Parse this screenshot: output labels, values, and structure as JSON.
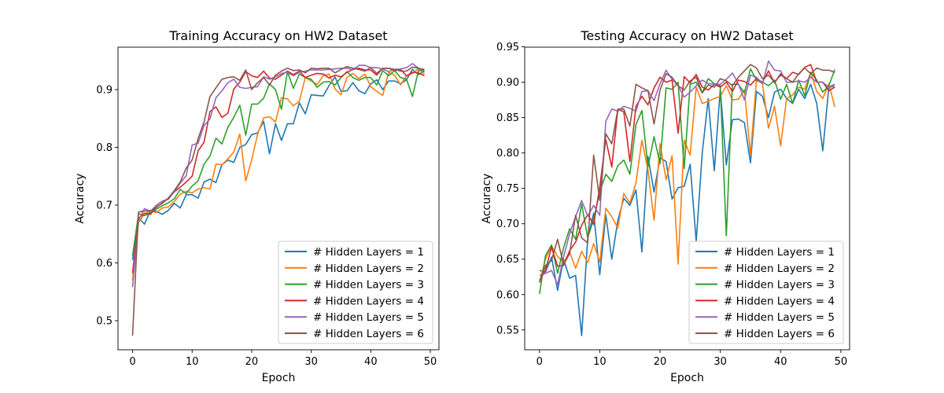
{
  "chart_data": [
    {
      "type": "line",
      "title": "Training Accuracy on HW2 Dataset",
      "xlabel": "Epoch",
      "ylabel": "Accuracy",
      "xlim": [
        -2.45,
        51.45
      ],
      "ylim": [
        0.4495,
        0.9735
      ],
      "xticks": [
        0,
        10,
        20,
        30,
        40,
        50
      ],
      "xtick_labels": [
        "0",
        "10",
        "20",
        "30",
        "40",
        "50"
      ],
      "yticks": [
        0.5,
        0.6,
        0.7,
        0.8,
        0.9
      ],
      "ytick_labels": [
        "0.5",
        "0.6",
        "0.7",
        "0.8",
        "0.9"
      ],
      "grid": false,
      "legend_position": "lower-right",
      "x": [
        0,
        1,
        2,
        3,
        4,
        5,
        6,
        7,
        8,
        9,
        10,
        11,
        12,
        13,
        14,
        15,
        16,
        17,
        18,
        19,
        20,
        21,
        22,
        23,
        24,
        25,
        26,
        27,
        28,
        29,
        30,
        31,
        32,
        33,
        34,
        35,
        36,
        37,
        38,
        39,
        40,
        41,
        42,
        43,
        44,
        45,
        46,
        47,
        48,
        49
      ],
      "series": [
        {
          "name": "# Hidden Layers = 1",
          "color": "#1f77b4",
          "values": [
            0.605,
            0.678,
            0.667,
            0.691,
            0.689,
            0.684,
            0.691,
            0.703,
            0.695,
            0.718,
            0.718,
            0.712,
            0.74,
            0.745,
            0.739,
            0.77,
            0.778,
            0.774,
            0.8,
            0.805,
            0.822,
            0.825,
            0.845,
            0.789,
            0.841,
            0.812,
            0.841,
            0.841,
            0.877,
            0.858,
            0.891,
            0.89,
            0.889,
            0.907,
            0.922,
            0.897,
            0.898,
            0.912,
            0.898,
            0.893,
            0.91,
            0.917,
            0.9,
            0.915,
            0.915,
            0.91,
            0.917,
            0.935,
            0.926,
            0.932
          ]
        },
        {
          "name": "# Hidden Layers = 2",
          "color": "#ff7f0e",
          "values": [
            0.57,
            0.67,
            0.685,
            0.69,
            0.687,
            0.695,
            0.697,
            0.706,
            0.719,
            0.724,
            0.721,
            0.728,
            0.73,
            0.728,
            0.771,
            0.77,
            0.78,
            0.792,
            0.823,
            0.742,
            0.778,
            0.823,
            0.851,
            0.853,
            0.844,
            0.886,
            0.884,
            0.872,
            0.88,
            0.921,
            0.915,
            0.909,
            0.924,
            0.927,
            0.901,
            0.891,
            0.921,
            0.928,
            0.919,
            0.927,
            0.905,
            0.897,
            0.89,
            0.93,
            0.925,
            0.908,
            0.924,
            0.928,
            0.936,
            0.927
          ]
        },
        {
          "name": "# Hidden Layers = 3",
          "color": "#2ca02c",
          "values": [
            0.612,
            0.685,
            0.682,
            0.686,
            0.693,
            0.699,
            0.704,
            0.711,
            0.727,
            0.72,
            0.733,
            0.742,
            0.771,
            0.785,
            0.816,
            0.806,
            0.835,
            0.852,
            0.873,
            0.821,
            0.875,
            0.875,
            0.885,
            0.91,
            0.9,
            0.866,
            0.931,
            0.902,
            0.927,
            0.921,
            0.918,
            0.904,
            0.913,
            0.914,
            0.908,
            0.921,
            0.931,
            0.921,
            0.916,
            0.921,
            0.921,
            0.908,
            0.933,
            0.924,
            0.933,
            0.921,
            0.918,
            0.888,
            0.933,
            0.933
          ]
        },
        {
          "name": "# Hidden Layers = 4",
          "color": "#d62728",
          "values": [
            0.582,
            0.677,
            0.686,
            0.684,
            0.697,
            0.703,
            0.712,
            0.723,
            0.731,
            0.74,
            0.75,
            0.794,
            0.809,
            0.862,
            0.87,
            0.852,
            0.859,
            0.901,
            0.913,
            0.931,
            0.924,
            0.921,
            0.932,
            0.92,
            0.918,
            0.925,
            0.932,
            0.926,
            0.932,
            0.921,
            0.925,
            0.928,
            0.927,
            0.92,
            0.925,
            0.922,
            0.93,
            0.935,
            0.937,
            0.934,
            0.934,
            0.925,
            0.937,
            0.937,
            0.933,
            0.935,
            0.924,
            0.93,
            0.929,
            0.924
          ]
        },
        {
          "name": "# Hidden Layers = 5",
          "color": "#9467bd",
          "values": [
            0.558,
            0.674,
            0.694,
            0.689,
            0.7,
            0.707,
            0.71,
            0.723,
            0.738,
            0.751,
            0.804,
            0.807,
            0.838,
            0.849,
            0.886,
            0.898,
            0.912,
            0.918,
            0.904,
            0.902,
            0.904,
            0.905,
            0.922,
            0.918,
            0.922,
            0.928,
            0.93,
            0.924,
            0.93,
            0.932,
            0.934,
            0.934,
            0.934,
            0.935,
            0.936,
            0.937,
            0.937,
            0.934,
            0.942,
            0.942,
            0.938,
            0.938,
            0.936,
            0.931,
            0.935,
            0.936,
            0.938,
            0.945,
            0.937,
            0.935
          ]
        },
        {
          "name": "# Hidden Layers = 6",
          "color": "#8c564b",
          "values": [
            0.474,
            0.688,
            0.69,
            0.69,
            0.696,
            0.704,
            0.712,
            0.725,
            0.74,
            0.764,
            0.778,
            0.815,
            0.844,
            0.888,
            0.903,
            0.918,
            0.921,
            0.922,
            0.916,
            0.934,
            0.9,
            0.912,
            0.921,
            0.908,
            0.925,
            0.932,
            0.937,
            0.933,
            0.934,
            0.929,
            0.937,
            0.936,
            0.937,
            0.937,
            0.929,
            0.935,
            0.94,
            0.937,
            0.935,
            0.932,
            0.938,
            0.928,
            0.937,
            0.937,
            0.935,
            0.932,
            0.932,
            0.939,
            0.937,
            0.934
          ]
        }
      ]
    },
    {
      "type": "line",
      "title": "Testing Accuracy on HW2 Dataset",
      "xlabel": "Epoch",
      "ylabel": "Accuracy",
      "xlim": [
        -2.45,
        51.45
      ],
      "ylim": [
        0.522,
        0.9495
      ],
      "xticks": [
        0,
        10,
        20,
        30,
        40,
        50
      ],
      "xtick_labels": [
        "0",
        "10",
        "20",
        "30",
        "40",
        "50"
      ],
      "yticks": [
        0.55,
        0.6,
        0.65,
        0.7,
        0.75,
        0.8,
        0.85,
        0.9,
        0.95
      ],
      "ytick_labels": [
        "0.55",
        "0.60",
        "0.65",
        "0.70",
        "0.75",
        "0.80",
        "0.85",
        "0.90",
        "0.95"
      ],
      "grid": false,
      "legend_position": "lower-right",
      "x": [
        0,
        1,
        2,
        3,
        4,
        5,
        6,
        7,
        8,
        9,
        10,
        11,
        12,
        13,
        14,
        15,
        16,
        17,
        18,
        19,
        20,
        21,
        22,
        23,
        24,
        25,
        26,
        27,
        28,
        29,
        30,
        31,
        32,
        33,
        34,
        35,
        36,
        37,
        38,
        39,
        40,
        41,
        42,
        43,
        44,
        45,
        46,
        47,
        48,
        49
      ],
      "series": [
        {
          "name": "# Hidden Layers = 1",
          "color": "#1f77b4",
          "values": [
            0.634,
            0.632,
            0.653,
            0.606,
            0.65,
            0.623,
            0.627,
            0.542,
            0.68,
            0.715,
            0.628,
            0.713,
            0.65,
            0.705,
            0.736,
            0.726,
            0.748,
            0.66,
            0.795,
            0.745,
            0.793,
            0.788,
            0.735,
            0.751,
            0.753,
            0.784,
            0.675,
            0.8,
            0.877,
            0.775,
            0.89,
            0.783,
            0.847,
            0.848,
            0.843,
            0.786,
            0.887,
            0.88,
            0.85,
            0.886,
            0.89,
            0.877,
            0.87,
            0.89,
            0.877,
            0.897,
            0.87,
            0.803,
            0.893,
            0.897
          ]
        },
        {
          "name": "# Hidden Layers = 2",
          "color": "#ff7f0e",
          "values": [
            0.617,
            0.65,
            0.669,
            0.654,
            0.645,
            0.66,
            0.637,
            0.661,
            0.645,
            0.672,
            0.646,
            0.722,
            0.71,
            0.694,
            0.743,
            0.729,
            0.758,
            0.818,
            0.776,
            0.705,
            0.813,
            0.762,
            0.796,
            0.643,
            0.818,
            0.797,
            0.893,
            0.87,
            0.873,
            0.877,
            0.88,
            0.895,
            0.875,
            0.876,
            0.889,
            0.797,
            0.903,
            0.898,
            0.835,
            0.866,
            0.81,
            0.877,
            0.882,
            0.893,
            0.89,
            0.914,
            0.887,
            0.877,
            0.898,
            0.865
          ]
        },
        {
          "name": "# Hidden Layers = 3",
          "color": "#2ca02c",
          "values": [
            0.601,
            0.655,
            0.67,
            0.63,
            0.666,
            0.693,
            0.678,
            0.728,
            0.68,
            0.707,
            0.745,
            0.77,
            0.76,
            0.782,
            0.79,
            0.77,
            0.84,
            0.86,
            0.78,
            0.823,
            0.785,
            0.892,
            0.89,
            0.9,
            0.778,
            0.897,
            0.9,
            0.885,
            0.905,
            0.898,
            0.895,
            0.683,
            0.897,
            0.897,
            0.885,
            0.919,
            0.903,
            0.9,
            0.895,
            0.903,
            0.876,
            0.897,
            0.87,
            0.903,
            0.881,
            0.914,
            0.903,
            0.886,
            0.895,
            0.918
          ]
        },
        {
          "name": "# Hidden Layers = 4",
          "color": "#d62728",
          "values": [
            0.62,
            0.634,
            0.667,
            0.64,
            0.641,
            0.662,
            0.674,
            0.698,
            0.713,
            0.699,
            0.752,
            0.819,
            0.78,
            0.862,
            0.858,
            0.788,
            0.866,
            0.88,
            0.868,
            0.892,
            0.907,
            0.9,
            0.903,
            0.828,
            0.908,
            0.899,
            0.911,
            0.893,
            0.889,
            0.897,
            0.893,
            0.9,
            0.887,
            0.903,
            0.901,
            0.896,
            0.905,
            0.9,
            0.916,
            0.899,
            0.912,
            0.905,
            0.914,
            0.911,
            0.921,
            0.925,
            0.9,
            0.9,
            0.888,
            0.893
          ]
        },
        {
          "name": "# Hidden Layers = 5",
          "color": "#9467bd",
          "values": [
            0.627,
            0.63,
            0.634,
            0.614,
            0.653,
            0.686,
            0.71,
            0.733,
            0.711,
            0.726,
            0.712,
            0.845,
            0.862,
            0.859,
            0.866,
            0.863,
            0.859,
            0.887,
            0.888,
            0.874,
            0.898,
            0.917,
            0.904,
            0.895,
            0.879,
            0.886,
            0.895,
            0.903,
            0.898,
            0.897,
            0.897,
            0.904,
            0.913,
            0.898,
            0.875,
            0.91,
            0.907,
            0.898,
            0.93,
            0.917,
            0.916,
            0.9,
            0.9,
            0.902,
            0.9,
            0.907,
            0.9,
            0.9,
            0.893,
            0.894
          ]
        },
        {
          "name": "# Hidden Layers = 6",
          "color": "#8c564b",
          "values": [
            0.617,
            0.641,
            0.648,
            0.678,
            0.642,
            0.658,
            0.712,
            0.68,
            0.673,
            0.797,
            0.733,
            0.827,
            0.813,
            0.862,
            0.862,
            0.838,
            0.897,
            0.892,
            0.888,
            0.841,
            0.889,
            0.912,
            0.907,
            0.895,
            0.889,
            0.902,
            0.907,
            0.885,
            0.896,
            0.893,
            0.905,
            0.902,
            0.895,
            0.907,
            0.916,
            0.925,
            0.92,
            0.905,
            0.91,
            0.9,
            0.91,
            0.905,
            0.9,
            0.912,
            0.92,
            0.912,
            0.92,
            0.917,
            0.917,
            0.914
          ]
        }
      ]
    }
  ]
}
